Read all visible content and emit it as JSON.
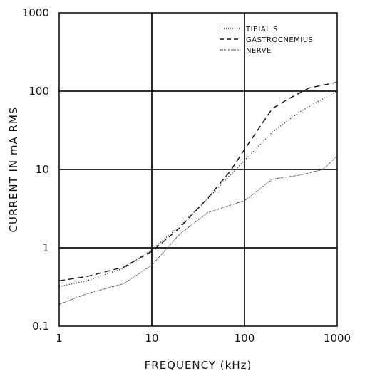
{
  "chart_data": {
    "type": "line",
    "xlabel": "FREQUENCY (kHz)",
    "ylabel": "CURRENT IN mA RMS",
    "xscale": "log",
    "yscale": "log",
    "xlim": [
      1,
      1000
    ],
    "ylim": [
      0.1,
      1000
    ],
    "x_tick_labels": [
      "1",
      "10",
      "100",
      "1000"
    ],
    "y_tick_labels": [
      "0.1",
      "1",
      "10",
      "100",
      "1000"
    ],
    "grid": "major only",
    "legend_position": "top-right",
    "series": [
      {
        "name": "TIBIAL S",
        "style": "dotted",
        "points": [
          [
            1,
            0.32
          ],
          [
            2,
            0.38
          ],
          [
            5,
            0.55
          ],
          [
            10,
            0.95
          ],
          [
            20,
            1.9
          ],
          [
            40,
            4.2
          ],
          [
            70,
            8.5
          ],
          [
            100,
            13
          ],
          [
            200,
            30
          ],
          [
            400,
            55
          ],
          [
            700,
            80
          ],
          [
            1200,
            100
          ]
        ]
      },
      {
        "name": "GASTROCNEMIUS",
        "style": "dashed",
        "points": [
          [
            1,
            0.38
          ],
          [
            2,
            0.43
          ],
          [
            5,
            0.57
          ],
          [
            10,
            0.9
          ],
          [
            20,
            1.8
          ],
          [
            40,
            4.3
          ],
          [
            70,
            9.5
          ],
          [
            100,
            18
          ],
          [
            200,
            60
          ],
          [
            300,
            80
          ],
          [
            500,
            110
          ],
          [
            1000,
            130
          ],
          [
            1200,
            128
          ]
        ]
      },
      {
        "name": "NERVE",
        "style": "dash-dot fine",
        "points": [
          [
            1,
            0.19
          ],
          [
            2,
            0.26
          ],
          [
            5,
            0.35
          ],
          [
            10,
            0.6
          ],
          [
            20,
            1.5
          ],
          [
            40,
            2.8
          ],
          [
            70,
            3.5
          ],
          [
            100,
            4
          ],
          [
            200,
            7.5
          ],
          [
            400,
            8.5
          ],
          [
            700,
            10
          ],
          [
            1200,
            15
          ]
        ]
      }
    ]
  }
}
